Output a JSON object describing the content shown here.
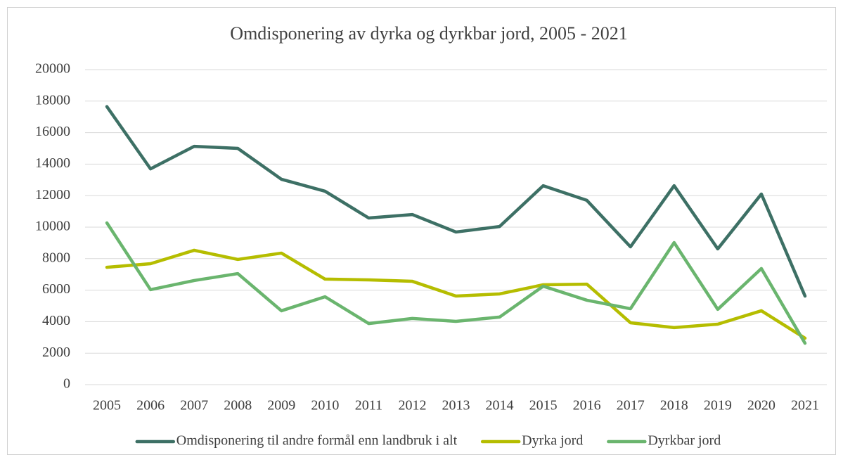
{
  "chart_data": {
    "type": "line",
    "title": "Omdisponering av dyrka og dyrkbar jord, 2005 - 2021",
    "categories": [
      "2005",
      "2006",
      "2007",
      "2008",
      "2009",
      "2010",
      "2011",
      "2012",
      "2013",
      "2014",
      "2015",
      "2016",
      "2017",
      "2018",
      "2019",
      "2020",
      "2021"
    ],
    "series": [
      {
        "name": "Omdisponering til andre formål enn landbruk i alt",
        "color": "#3d7065",
        "values": [
          17650,
          13700,
          15130,
          15000,
          13040,
          12280,
          10580,
          10800,
          9690,
          10040,
          12630,
          11700,
          8750,
          12630,
          8620,
          12100,
          5625
        ]
      },
      {
        "name": "Dyrka jord",
        "color": "#b5bd00",
        "values": [
          7450,
          7680,
          8530,
          7950,
          8350,
          6700,
          6650,
          6560,
          5625,
          5760,
          6340,
          6380,
          3930,
          3620,
          3840,
          4690,
          2950
        ]
      },
      {
        "name": "Dyrkbar jord",
        "color": "#6ab56e",
        "values": [
          10270,
          6030,
          6610,
          7050,
          4690,
          5580,
          3880,
          4200,
          4020,
          4290,
          6250,
          5360,
          4820,
          9020,
          4780,
          7370,
          2630
        ]
      }
    ],
    "ylim": [
      0,
      20000
    ],
    "yticks": [
      0,
      2000,
      4000,
      6000,
      8000,
      10000,
      12000,
      14000,
      16000,
      18000,
      20000
    ],
    "grid": true,
    "legend": "bottom"
  }
}
